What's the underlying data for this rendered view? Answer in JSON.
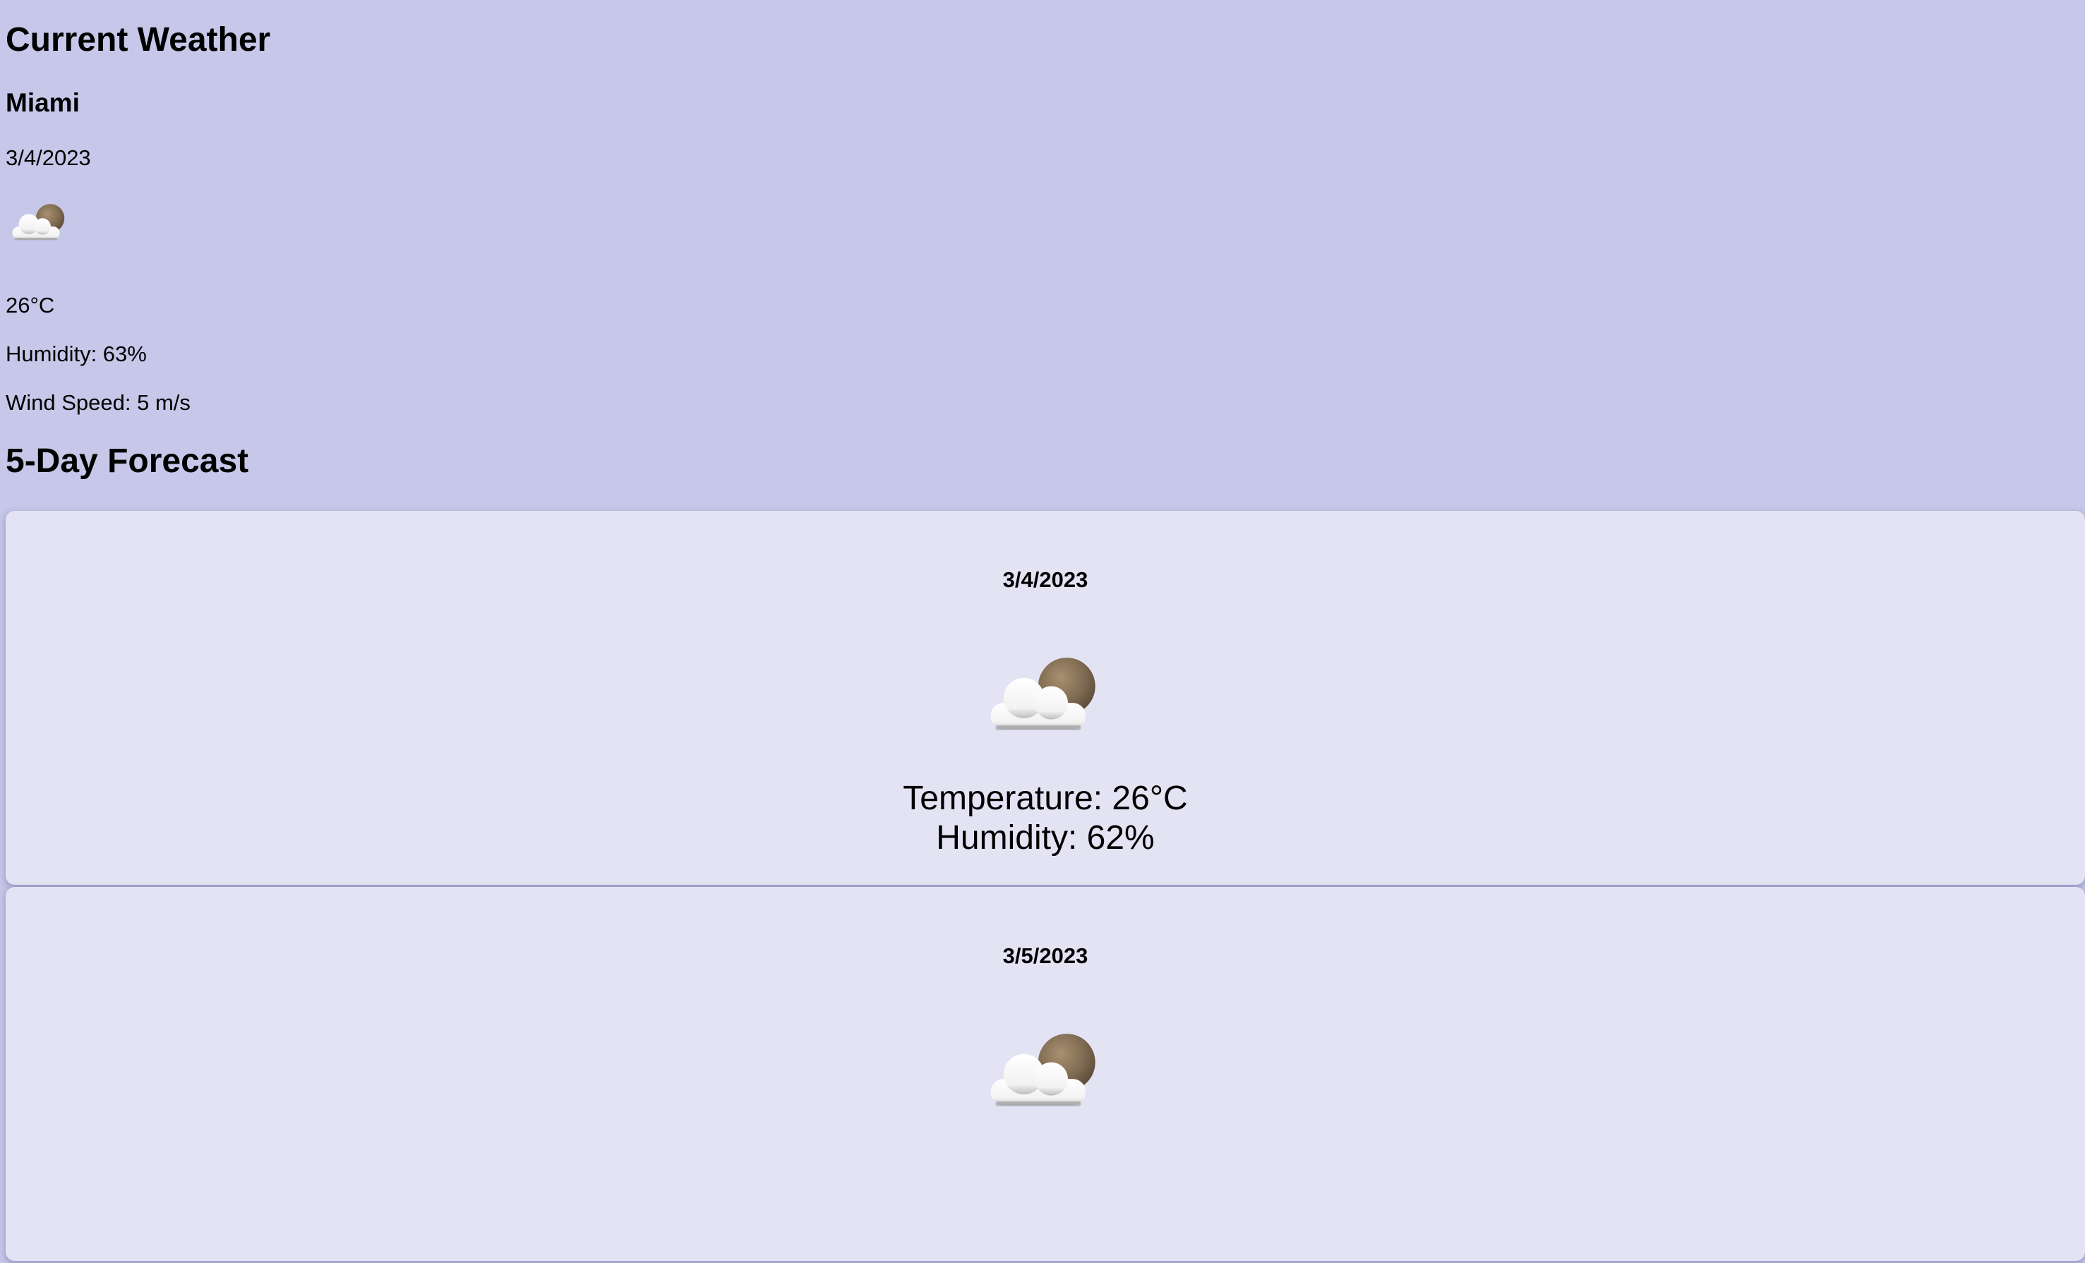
{
  "current": {
    "heading": "Current Weather",
    "city": "Miami",
    "date": "3/4/2023",
    "icon": "partly-cloudy-night-icon",
    "temperature": "26°C",
    "humidity": "Humidity: 63%",
    "wind_speed": "Wind Speed: 5 m/s"
  },
  "forecast": {
    "heading": "5-Day Forecast",
    "days": [
      {
        "date": "3/4/2023",
        "icon": "partly-cloudy-night-icon",
        "temperature": "Temperature: 26°C",
        "humidity": "Humidity: 62%"
      },
      {
        "date": "3/5/2023",
        "icon": "partly-cloudy-night-icon"
      }
    ]
  },
  "colors": {
    "background": "#c7c7e9",
    "card": "#e4e3f4",
    "text": "#000000"
  }
}
